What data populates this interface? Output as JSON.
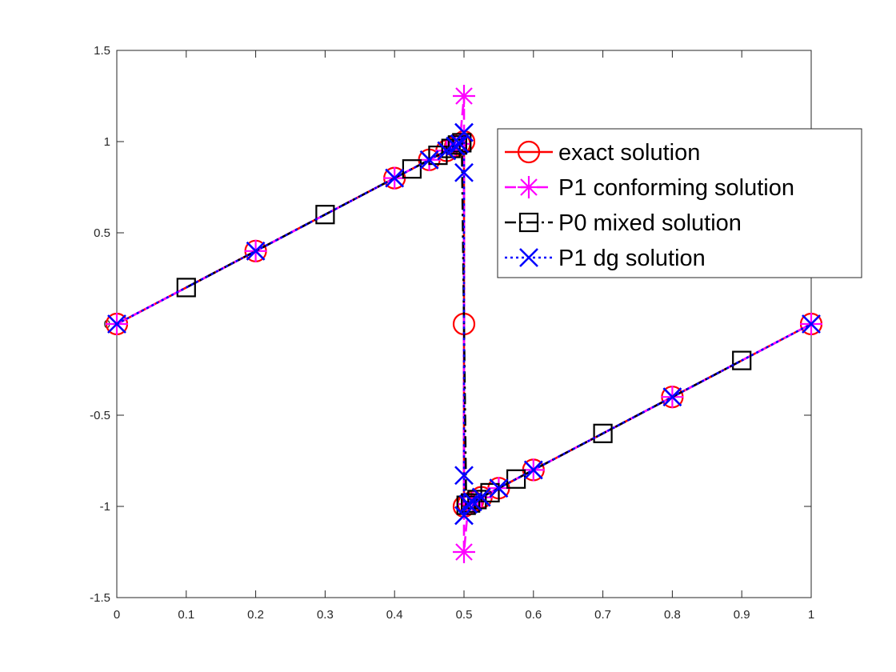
{
  "chart_data": {
    "type": "line",
    "title": "",
    "xlabel": "",
    "ylabel": "",
    "xlim": [
      0,
      1
    ],
    "ylim": [
      -1.5,
      1.5
    ],
    "xticks": [
      0,
      0.1,
      0.2,
      0.3,
      0.4,
      0.5,
      0.6,
      0.7,
      0.8,
      0.9,
      1
    ],
    "xtick_labels": [
      "0",
      "0.1",
      "0.2",
      "0.3",
      "0.4",
      "0.5",
      "0.6",
      "0.7",
      "0.8",
      "0.9",
      "1"
    ],
    "yticks": [
      -1.5,
      -1,
      -0.5,
      0,
      0.5,
      1,
      1.5
    ],
    "ytick_labels": [
      "-1.5",
      "-1",
      "-0.5",
      "0",
      "0.5",
      "1",
      "1.5"
    ],
    "grid": false,
    "legend_position": "top-right",
    "series": [
      {
        "name": "exact solution",
        "color": "#ff0000",
        "line_style": "solid",
        "marker": "circle",
        "x": [
          0,
          0.2,
          0.4,
          0.45,
          0.475,
          0.4875,
          0.49375,
          0.5,
          0.5,
          0.5,
          0.50625,
          0.5125,
          0.525,
          0.55,
          0.6,
          0.8,
          1
        ],
        "y": [
          0,
          0.4,
          0.8,
          0.9,
          0.95,
          0.975,
          0.9875,
          1,
          0,
          -1,
          -0.9875,
          -0.975,
          -0.95,
          -0.9,
          -0.8,
          -0.4,
          0
        ]
      },
      {
        "name": "P1 conforming solution",
        "color": "#ff00ff",
        "line_style": "dashed",
        "marker": "asterisk",
        "x": [
          0,
          0.2,
          0.4,
          0.45,
          0.475,
          0.4875,
          0.49375,
          0.5,
          0.5,
          0.50625,
          0.5125,
          0.525,
          0.55,
          0.6,
          0.8,
          1
        ],
        "y": [
          0,
          0.4,
          0.8,
          0.9,
          0.95,
          0.975,
          0.9875,
          1.25,
          -1.25,
          -0.9875,
          -0.975,
          -0.95,
          -0.9,
          -0.8,
          -0.4,
          0
        ]
      },
      {
        "name": "P0 mixed solution",
        "color": "#000000",
        "line_style": "dashdot",
        "marker": "square",
        "x": [
          0.1,
          0.3,
          0.425,
          0.4625,
          0.48125,
          0.490625,
          0.496875,
          0.503125,
          0.509375,
          0.51875,
          0.5375,
          0.575,
          0.7,
          0.9
        ],
        "y": [
          0.2,
          0.6,
          0.85,
          0.925,
          0.9625,
          0.98125,
          0.99375,
          -0.99375,
          -0.98125,
          -0.9625,
          -0.925,
          -0.85,
          -0.6,
          -0.2
        ]
      },
      {
        "name": "P1 dg solution",
        "color": "#0000ff",
        "line_style": "dotted",
        "marker": "x",
        "x": [
          0,
          0.2,
          0.4,
          0.45,
          0.475,
          0.4875,
          0.49375,
          0.5,
          0.5,
          0.5,
          0.5,
          0.50625,
          0.5125,
          0.525,
          0.55,
          0.6,
          0.8,
          1
        ],
        "y": [
          0,
          0.4,
          0.8,
          0.9,
          0.95,
          0.975,
          0.9875,
          1.05,
          0.83,
          -0.83,
          -1.05,
          -0.9875,
          -0.975,
          -0.95,
          -0.9,
          -0.8,
          -0.4,
          0
        ]
      }
    ]
  }
}
